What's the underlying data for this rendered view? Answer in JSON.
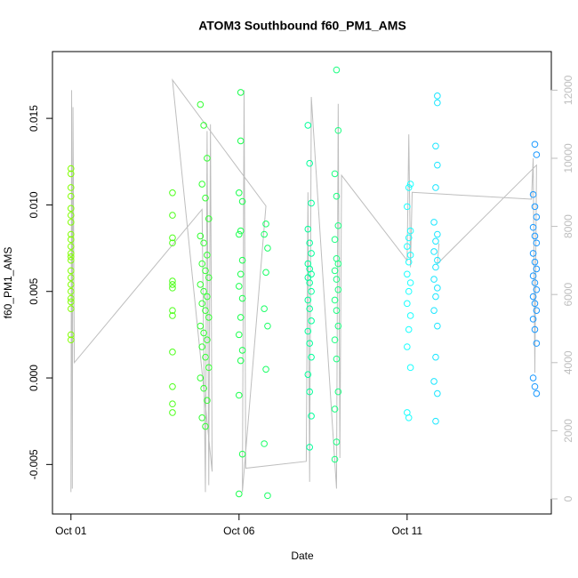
{
  "chart_data": {
    "type": "scatter",
    "title": "ATOM3 Southbound f60_PM1_AMS",
    "x_label": "Date",
    "y_label": "f60_PM1_AMS",
    "xlim": [
      -0.55,
      14.29
    ],
    "ylim": [
      -0.00786,
      0.01886
    ],
    "y2lim": [
      -444,
      13133
    ],
    "xticks": [
      {
        "value": 0,
        "label": "Oct 01"
      },
      {
        "value": 5,
        "label": "Oct 06"
      },
      {
        "value": 10,
        "label": "Oct 11"
      }
    ],
    "yticks": [
      -0.005,
      {
        "value": 0,
        "label": "0.000"
      },
      0.005,
      {
        "value": 0.01,
        "label": "0.010"
      },
      0.015
    ],
    "y2ticks": [
      0,
      2000,
      4000,
      6000,
      8000,
      10000,
      12000
    ],
    "y2color": "#bebebe",
    "series": [
      {
        "color": "#80ff00",
        "x": [
          0,
          0,
          0,
          0,
          0,
          0,
          0,
          0,
          0,
          0,
          0,
          0,
          0,
          0,
          0,
          0,
          0,
          0,
          0,
          0,
          0,
          0
        ],
        "values": [
          0.0121,
          0.0118,
          0.011,
          0.0105,
          0.0098,
          0.0094,
          0.009,
          0.0083,
          0.008,
          0.0076,
          0.0072,
          0.007,
          0.0068,
          0.0062,
          0.0058,
          0.0054,
          0.005,
          0.0046,
          0.0044,
          0.004,
          0.0025,
          0.0022
        ]
      },
      {
        "color": "#4dff1a",
        "x": [
          3.02,
          3.02,
          3.02,
          3.02,
          3.02,
          3.02,
          3.02,
          3.02,
          3.02,
          3.02,
          3.02,
          3.02,
          3.02
        ],
        "values": [
          0.0107,
          0.0094,
          0.0081,
          0.0078,
          0.0056,
          0.0054,
          0.0052,
          0.0039,
          0.0036,
          0.0015,
          -0.0005,
          -0.0015,
          -0.002
        ]
      },
      {
        "color": "#33ff33",
        "x": [
          3.85,
          3.95,
          4.05,
          3.9,
          4.0,
          4.1,
          3.85,
          3.95,
          4.05,
          3.9,
          4.0,
          4.1,
          3.85,
          3.95,
          4.05,
          3.9,
          4.0,
          4.1,
          3.85,
          3.95,
          4.05,
          3.9,
          4.0,
          4.1,
          3.85,
          3.95,
          4.05,
          3.9,
          4.0
        ],
        "values": [
          0.0158,
          0.0146,
          0.0127,
          0.0112,
          0.0104,
          0.0092,
          0.0082,
          0.0078,
          0.0071,
          0.0066,
          0.0062,
          0.0058,
          0.0054,
          0.005,
          0.0047,
          0.0043,
          0.0039,
          0.0035,
          0.003,
          0.0026,
          0.0022,
          0.0018,
          0.0012,
          0.0006,
          0.0,
          -0.0006,
          -0.0013,
          -0.0023,
          -0.0028
        ]
      },
      {
        "color": "#1aff4d",
        "x": [
          5.05,
          5.05,
          5.0,
          5.1,
          5.05,
          5.0,
          5.1,
          5.05,
          5.0,
          5.1,
          5.05,
          5.0,
          5.1,
          5.05,
          5.0,
          5.1,
          5.0
        ],
        "values": [
          0.0165,
          0.0137,
          0.0107,
          0.0102,
          0.0085,
          0.0083,
          0.0068,
          0.006,
          0.0053,
          0.0046,
          0.0035,
          0.0025,
          0.0016,
          0.001,
          -0.001,
          -0.0044,
          -0.0067
        ]
      },
      {
        "color": "#1aff66",
        "x": [
          5.8,
          5.75,
          5.85,
          5.8,
          5.75,
          5.85,
          5.8,
          5.75,
          5.85
        ],
        "values": [
          0.0089,
          0.0083,
          0.0075,
          0.0061,
          0.004,
          0.003,
          0.0005,
          -0.0038,
          -0.0068
        ]
      },
      {
        "color": "#00ff99",
        "x": [
          7.05,
          7.1,
          7.15,
          7.05,
          7.1,
          7.15,
          7.05,
          7.1,
          7.15,
          7.05,
          7.1,
          7.15,
          7.05,
          7.1,
          7.15,
          7.05,
          7.1,
          7.15,
          7.05,
          7.1,
          7.15,
          7.1
        ],
        "values": [
          0.0146,
          0.0124,
          0.0101,
          0.0086,
          0.0078,
          0.0072,
          0.0066,
          0.0063,
          0.006,
          0.0058,
          0.0055,
          0.005,
          0.0045,
          0.004,
          0.0033,
          0.0027,
          0.002,
          0.0012,
          0.0002,
          -0.0008,
          -0.0022,
          -0.004
        ]
      },
      {
        "color": "#1aff80",
        "x": [
          7.9,
          7.95,
          7.85,
          7.9,
          7.95,
          7.85,
          7.9,
          7.95,
          7.85,
          7.9,
          7.95,
          7.85,
          7.9,
          7.95,
          7.85,
          7.9,
          7.95,
          7.85,
          7.9,
          7.85
        ],
        "values": [
          0.0178,
          0.0143,
          0.0118,
          0.0105,
          0.0088,
          0.008,
          0.0069,
          0.0066,
          0.0062,
          0.0057,
          0.0051,
          0.0045,
          0.0039,
          0.003,
          0.0022,
          0.0011,
          -0.0008,
          -0.0018,
          -0.0037,
          -0.0047
        ]
      },
      {
        "color": "#1affff",
        "x": [
          10.1,
          10.05,
          10.0,
          10.1,
          10.05,
          10.0,
          10.1,
          10.05,
          10.0,
          10.1,
          10.05,
          10.0,
          10.1,
          10.05,
          10.0,
          10.1,
          10.0,
          10.05
        ],
        "values": [
          0.0112,
          0.011,
          0.0099,
          0.0085,
          0.0081,
          0.0076,
          0.0071,
          0.0067,
          0.006,
          0.0055,
          0.005,
          0.0043,
          0.0036,
          0.0028,
          0.0018,
          0.0006,
          -0.002,
          -0.0023
        ]
      },
      {
        "color": "#1ae6ff",
        "x": [
          10.9,
          10.9,
          10.85,
          10.9,
          10.85,
          10.8,
          10.9,
          10.85,
          10.8,
          10.9,
          10.85,
          10.8,
          10.9,
          10.85,
          10.8,
          10.9,
          10.85,
          10.8,
          10.9,
          10.85
        ],
        "values": [
          0.0163,
          0.0159,
          0.0134,
          0.0123,
          0.011,
          0.009,
          0.0083,
          0.0079,
          0.0073,
          0.0068,
          0.0064,
          0.0057,
          0.0052,
          0.0047,
          0.0039,
          0.003,
          0.0012,
          -0.0002,
          -0.0009,
          -0.0025
        ]
      },
      {
        "color": "#1a99ff",
        "x": [
          13.8,
          13.85,
          13.75,
          13.8,
          13.85,
          13.75,
          13.8,
          13.85,
          13.75,
          13.8,
          13.85,
          13.75,
          13.8,
          13.85,
          13.75,
          13.8,
          13.85,
          13.75,
          13.8,
          13.85,
          13.75,
          13.8,
          13.85
        ],
        "values": [
          0.0135,
          0.0129,
          0.0106,
          0.0099,
          0.0093,
          0.0087,
          0.0082,
          0.0078,
          0.0072,
          0.0067,
          0.0063,
          0.0059,
          0.0055,
          0.0051,
          0.0047,
          0.0043,
          0.0039,
          0.0034,
          0.0028,
          0.002,
          0.0,
          -0.0005,
          -0.0009
        ]
      },
      {
        "type": "line",
        "axis": "y2",
        "color": "#bebebe",
        "x": [
          0,
          0.02,
          0.04,
          0.06,
          0.1,
          3.9,
          4.0,
          4.05,
          4.1,
          4.15,
          4.2,
          3.02,
          5.8,
          5.1,
          5.15,
          5.2,
          7.0,
          7.05,
          7.1,
          7.15,
          7.9,
          7.95,
          8.0,
          8.05,
          10.0,
          10.05,
          10.1,
          10.15,
          13.7,
          13.75,
          13.8,
          13.85,
          10.9,
          10.95
        ],
        "values": [
          200,
          12000,
          300,
          11500,
          4000,
          8500,
          200,
          10800,
          400,
          11000,
          800,
          12300,
          8600,
          200,
          12000,
          900,
          1100,
          9000,
          500,
          11800,
          300,
          11600,
          1200,
          9500,
          7000,
          10700,
          6800,
          9000,
          8800,
          10000,
          3700,
          9800,
          6900,
          7500
        ]
      }
    ]
  }
}
